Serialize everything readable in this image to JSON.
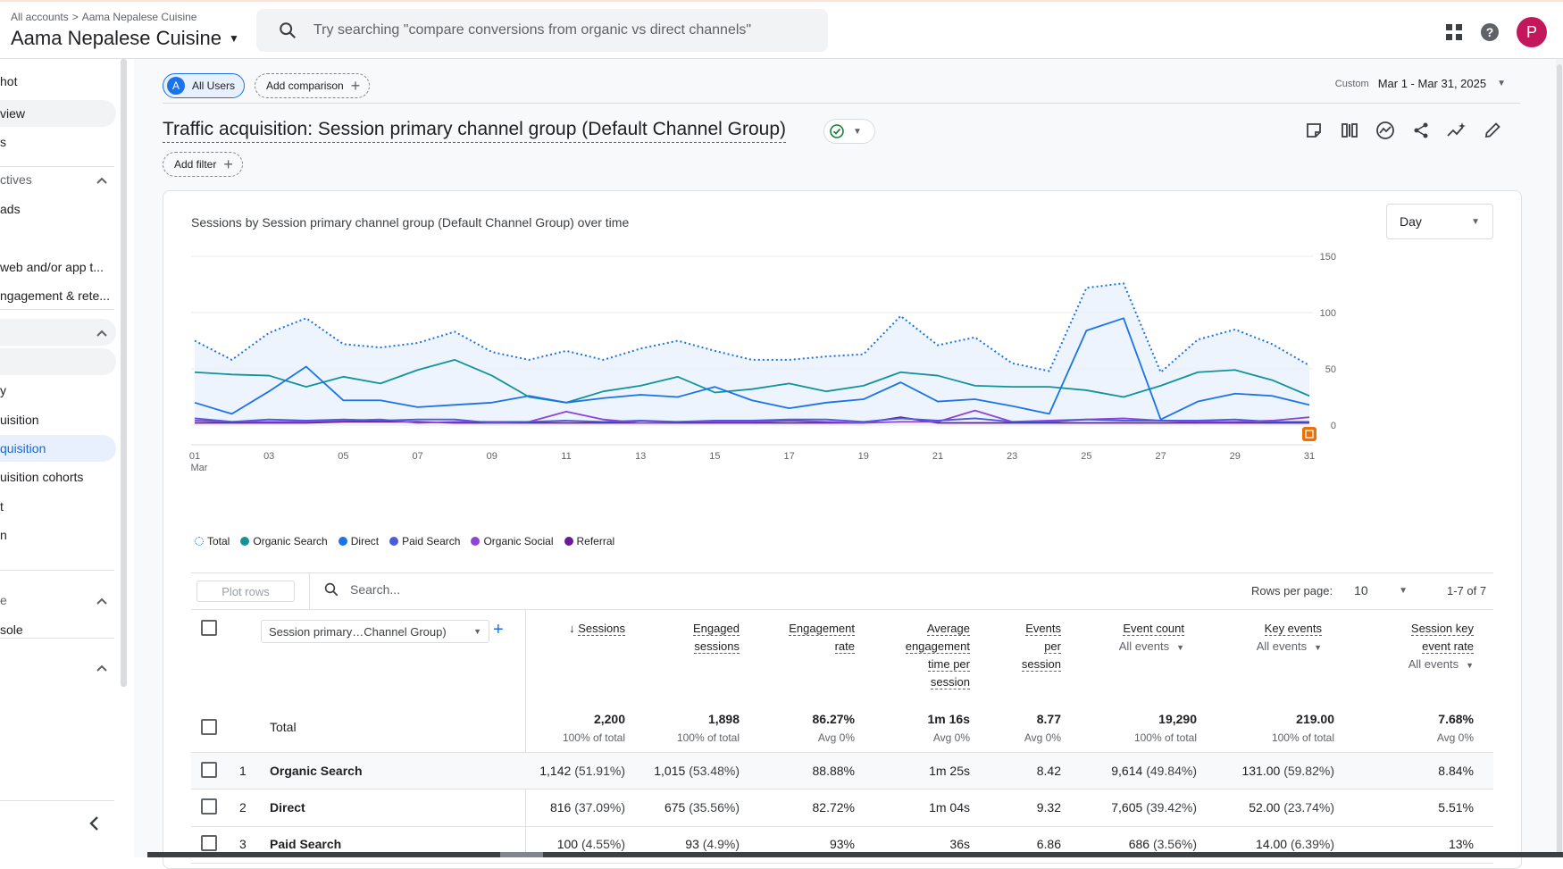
{
  "header": {
    "breadcrumb_root": "All accounts",
    "breadcrumb_sep": ">",
    "breadcrumb_property": "Aama Nepalese Cuisine",
    "property_name": "Aama Nepalese Cuisine",
    "search_placeholder": "Try searching \"compare conversions from organic vs direct channels\"",
    "avatar_letter": "P"
  },
  "sidebar": {
    "items": [
      {
        "label": "hot"
      },
      {
        "label": "view"
      },
      {
        "label": "s"
      },
      {
        "label": "ctives"
      },
      {
        "label": "ads"
      },
      {
        "label": "web and/or app t..."
      },
      {
        "label": "ngagement & rete..."
      },
      {
        "label": "y"
      },
      {
        "label": "uisition"
      },
      {
        "label": "quisition"
      },
      {
        "label": "uisition cohorts"
      },
      {
        "label": "t"
      },
      {
        "label": "n"
      },
      {
        "label": "e"
      },
      {
        "label": "sole"
      }
    ]
  },
  "toolbar": {
    "segment_letter": "A",
    "segment_label": "All Users",
    "add_comparison": "Add comparison",
    "date_label": "Custom",
    "date_range": "Mar 1 - Mar 31, 2025",
    "add_filter": "Add filter"
  },
  "report": {
    "title": "Traffic acquisition: Session primary channel group (Default Channel Group)",
    "chart_title": "Sessions by Session primary channel group (Default Channel Group) over time",
    "granularity": "Day"
  },
  "chart_data": {
    "type": "line",
    "x": [
      "01",
      "02",
      "03",
      "04",
      "05",
      "06",
      "07",
      "08",
      "09",
      "10",
      "11",
      "12",
      "13",
      "14",
      "15",
      "16",
      "17",
      "18",
      "19",
      "20",
      "21",
      "22",
      "23",
      "24",
      "25",
      "26",
      "27",
      "28",
      "29",
      "30",
      "31"
    ],
    "x_tick_labels": [
      "01",
      "03",
      "05",
      "07",
      "09",
      "11",
      "13",
      "15",
      "17",
      "19",
      "21",
      "23",
      "25",
      "27",
      "29",
      "31"
    ],
    "x_sublabel": "Mar",
    "y_ticks": [
      0,
      50,
      100,
      150
    ],
    "ylim": [
      0,
      150
    ],
    "series": [
      {
        "name": "Total",
        "color": "#1a73e8",
        "dotted": true,
        "values": [
          75,
          58,
          82,
          95,
          72,
          69,
          73,
          83,
          65,
          58,
          66,
          58,
          68,
          75,
          66,
          58,
          58,
          61,
          63,
          97,
          71,
          78,
          55,
          48,
          122,
          126,
          47,
          76,
          85,
          72,
          53
        ]
      },
      {
        "name": "Organic Search",
        "color": "#12939a",
        "values": [
          47,
          45,
          44,
          34,
          43,
          37,
          49,
          58,
          44,
          25,
          20,
          30,
          35,
          43,
          29,
          32,
          37,
          30,
          35,
          47,
          44,
          35,
          34,
          34,
          31,
          25,
          35,
          47,
          49,
          40,
          26
        ]
      },
      {
        "name": "Direct",
        "color": "#1a73e8",
        "values": [
          20,
          10,
          30,
          52,
          22,
          22,
          16,
          18,
          20,
          26,
          20,
          24,
          27,
          25,
          34,
          22,
          15,
          20,
          23,
          38,
          21,
          23,
          17,
          10,
          84,
          95,
          5,
          21,
          28,
          26,
          18
        ]
      },
      {
        "name": "Paid Search",
        "color": "#4a5cd9",
        "values": [
          6,
          3,
          5,
          4,
          5,
          4,
          5,
          5,
          2,
          3,
          4,
          3,
          4,
          3,
          4,
          4,
          5,
          5,
          3,
          6,
          4,
          6,
          3,
          3,
          5,
          4,
          4,
          4,
          5,
          3,
          3
        ]
      },
      {
        "name": "Organic Social",
        "color": "#8e44d6",
        "values": [
          4,
          3,
          3,
          3,
          4,
          5,
          2,
          3,
          3,
          3,
          12,
          5,
          2,
          3,
          3,
          3,
          4,
          3,
          2,
          3,
          3,
          13,
          3,
          4,
          5,
          6,
          4,
          3,
          3,
          4,
          7
        ]
      },
      {
        "name": "Referral",
        "color": "#6a1b9a",
        "values": [
          2,
          2,
          2,
          2,
          3,
          3,
          3,
          2,
          2,
          2,
          2,
          2,
          2,
          2,
          2,
          2,
          2,
          2,
          2,
          7,
          2,
          2,
          2,
          2,
          2,
          2,
          2,
          2,
          2,
          2,
          2
        ]
      }
    ]
  },
  "table": {
    "plot_rows": "Plot rows",
    "search_placeholder": "Search...",
    "rows_per_page_label": "Rows per page:",
    "rows_per_page": "10",
    "range": "1-7 of 7",
    "dimension": "Session primary…Channel Group)",
    "headers": {
      "sessions": "Sessions",
      "engaged_1": "Engaged",
      "engaged_2": "sessions",
      "eng_rate_1": "Engagement",
      "eng_rate_2": "rate",
      "avg_1": "Average",
      "avg_2": "engagement",
      "avg_3": "time per",
      "avg_4": "session",
      "eps_1": "Events",
      "eps_2": "per",
      "eps_3": "session",
      "event_count": "Event count",
      "event_count_sub": "All events",
      "key_events": "Key events",
      "key_events_sub": "All events",
      "skr_1": "Session key",
      "skr_2": "event rate",
      "skr_sub": "All events"
    },
    "total": {
      "label": "Total",
      "sessions": "2,200",
      "sessions_sub": "100% of total",
      "engaged": "1,898",
      "engaged_sub": "100% of total",
      "eng_rate": "86.27%",
      "eng_rate_sub": "Avg 0%",
      "avg_time": "1m 16s",
      "avg_time_sub": "Avg 0%",
      "eps": "8.77",
      "eps_sub": "Avg 0%",
      "event_count": "19,290",
      "event_count_sub": "100% of total",
      "key_events": "219.00",
      "key_events_sub": "100% of total",
      "skr": "7.68%",
      "skr_sub": "Avg 0%"
    },
    "rows": [
      {
        "num": "1",
        "name": "Organic Search",
        "sessions": "1,142",
        "sessions_pct": "(51.91%)",
        "engaged": "1,015",
        "engaged_pct": "(53.48%)",
        "eng_rate": "88.88%",
        "avg_time": "1m 25s",
        "eps": "8.42",
        "event_count": "9,614",
        "event_count_pct": "(49.84%)",
        "key_events": "131.00",
        "key_events_pct": "(59.82%)",
        "skr": "8.84%"
      },
      {
        "num": "2",
        "name": "Direct",
        "sessions": "816",
        "sessions_pct": "(37.09%)",
        "engaged": "675",
        "engaged_pct": "(35.56%)",
        "eng_rate": "82.72%",
        "avg_time": "1m 04s",
        "eps": "9.32",
        "event_count": "7,605",
        "event_count_pct": "(39.42%)",
        "key_events": "52.00",
        "key_events_pct": "(23.74%)",
        "skr": "5.51%"
      },
      {
        "num": "3",
        "name": "Paid Search",
        "sessions": "100",
        "sessions_pct": "(4.55%)",
        "engaged": "93",
        "engaged_pct": "(4.9%)",
        "eng_rate": "93%",
        "avg_time": "36s",
        "eps": "6.86",
        "event_count": "686",
        "event_count_pct": "(3.56%)",
        "key_events": "14.00",
        "key_events_pct": "(6.39%)",
        "skr": "13%"
      }
    ]
  }
}
